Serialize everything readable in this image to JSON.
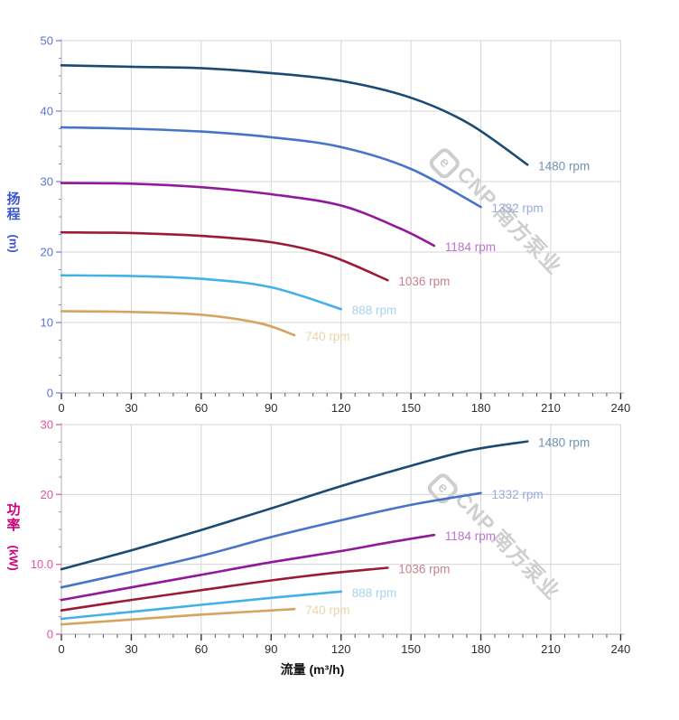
{
  "page": {
    "background": "#ffffff"
  },
  "watermark": {
    "logo_char": "e",
    "brand": "CNP",
    "company": "南方泵业"
  },
  "chart_data": [
    {
      "type": "line",
      "title": "",
      "xlabel": "",
      "ylabel": "扬程 (m)",
      "ylabel_text": "扬程",
      "ylabel_unit": "(m)",
      "xlim": [
        0,
        240
      ],
      "ylim": [
        0,
        50
      ],
      "grid": true,
      "x_ticks": [
        0,
        30,
        60,
        90,
        120,
        150,
        180,
        210,
        240
      ],
      "x_minor_step": 6,
      "y_ticks": [
        0,
        10,
        20,
        30,
        40,
        50
      ],
      "y_tick_labels": [
        "0",
        "10",
        "20",
        "30",
        "40",
        "50"
      ],
      "y_minor_step": 2.5,
      "x_tick_label_color": "#2d2d2d",
      "y_tick_color": "#7b8fe0",
      "y_tick_label_color": "#5b74dd",
      "y_title_color": "#3c55cf",
      "grid_color": "#d5d5d5",
      "axis_color": "#bdbdbd",
      "series": [
        {
          "name": "1480 rpm",
          "color": "#1b4a74",
          "label_color": "#6e93b4",
          "points": [
            [
              0,
              46.5
            ],
            [
              30,
              46.3
            ],
            [
              60,
              46.1
            ],
            [
              90,
              45.4
            ],
            [
              120,
              44.3
            ],
            [
              150,
              41.9
            ],
            [
              175,
              38.2
            ],
            [
              200,
              32.4
            ]
          ]
        },
        {
          "name": "1332 rpm",
          "color": "#4674c8",
          "label_color": "#97abde",
          "points": [
            [
              0,
              37.7
            ],
            [
              30,
              37.5
            ],
            [
              60,
              37.1
            ],
            [
              90,
              36.3
            ],
            [
              120,
              34.9
            ],
            [
              150,
              31.8
            ],
            [
              180,
              26.4
            ]
          ]
        },
        {
          "name": "1184 rpm",
          "color": "#92189c",
          "label_color": "#bf72cf",
          "points": [
            [
              0,
              29.8
            ],
            [
              30,
              29.7
            ],
            [
              60,
              29.2
            ],
            [
              90,
              28.2
            ],
            [
              120,
              26.6
            ],
            [
              145,
              23.4
            ],
            [
              160,
              20.9
            ]
          ]
        },
        {
          "name": "1036 rpm",
          "color": "#9c1a38",
          "label_color": "#c9808f",
          "points": [
            [
              0,
              22.8
            ],
            [
              30,
              22.7
            ],
            [
              60,
              22.3
            ],
            [
              90,
              21.4
            ],
            [
              115,
              19.5
            ],
            [
              140,
              16.0
            ]
          ]
        },
        {
          "name": "888 rpm",
          "color": "#41b2e8",
          "label_color": "#a6d4f0",
          "points": [
            [
              0,
              16.7
            ],
            [
              30,
              16.6
            ],
            [
              60,
              16.2
            ],
            [
              90,
              15.0
            ],
            [
              120,
              11.9
            ]
          ]
        },
        {
          "name": "740 rpm",
          "color": "#d7a360",
          "label_color": "#ecd3a7",
          "points": [
            [
              0,
              11.6
            ],
            [
              30,
              11.5
            ],
            [
              60,
              11.1
            ],
            [
              85,
              9.9
            ],
            [
              100,
              8.2
            ]
          ]
        }
      ]
    },
    {
      "type": "line",
      "title": "",
      "xlabel": "流量 (m³/h)",
      "ylabel": "功率 (kW)",
      "ylabel_text": "功率",
      "ylabel_unit": "(kW)",
      "xlim": [
        0,
        240
      ],
      "ylim": [
        0,
        30
      ],
      "grid": true,
      "x_ticks": [
        0,
        30,
        60,
        90,
        120,
        150,
        180,
        210,
        240
      ],
      "x_minor_step": 6,
      "y_ticks": [
        0,
        10,
        20,
        30
      ],
      "y_tick_labels": [
        "0",
        "10.0",
        "20",
        "30"
      ],
      "y_minor_step": 2.5,
      "x_tick_label_color": "#2d2d2d",
      "y_tick_color": "#e668a8",
      "y_tick_label_color": "#e8519e",
      "y_title_color": "#ce0077",
      "grid_color": "#d5d5d5",
      "axis_color": "#bdbdbd",
      "series": [
        {
          "name": "1480 rpm",
          "color": "#1b4a74",
          "label_color": "#6e93b4",
          "points": [
            [
              0,
              9.3
            ],
            [
              30,
              12.0
            ],
            [
              60,
              14.9
            ],
            [
              90,
              18.0
            ],
            [
              120,
              21.2
            ],
            [
              150,
              24.1
            ],
            [
              175,
              26.3
            ],
            [
              200,
              27.6
            ]
          ]
        },
        {
          "name": "1332 rpm",
          "color": "#4674c8",
          "label_color": "#97abde",
          "points": [
            [
              0,
              6.7
            ],
            [
              30,
              8.9
            ],
            [
              60,
              11.2
            ],
            [
              90,
              13.9
            ],
            [
              120,
              16.3
            ],
            [
              150,
              18.5
            ],
            [
              180,
              20.2
            ]
          ]
        },
        {
          "name": "1184 rpm",
          "color": "#92189c",
          "label_color": "#bf72cf",
          "points": [
            [
              0,
              4.9
            ],
            [
              30,
              6.7
            ],
            [
              60,
              8.5
            ],
            [
              90,
              10.3
            ],
            [
              120,
              11.9
            ],
            [
              140,
              13.1
            ],
            [
              160,
              14.2
            ]
          ]
        },
        {
          "name": "1036 rpm",
          "color": "#9c1a38",
          "label_color": "#c9808f",
          "points": [
            [
              0,
              3.4
            ],
            [
              30,
              4.9
            ],
            [
              60,
              6.3
            ],
            [
              90,
              7.7
            ],
            [
              115,
              8.7
            ],
            [
              140,
              9.5
            ]
          ]
        },
        {
          "name": "888 rpm",
          "color": "#41b2e8",
          "label_color": "#a6d4f0",
          "points": [
            [
              0,
              2.2
            ],
            [
              30,
              3.2
            ],
            [
              60,
              4.2
            ],
            [
              90,
              5.2
            ],
            [
              120,
              6.1
            ]
          ]
        },
        {
          "name": "740 rpm",
          "color": "#d7a360",
          "label_color": "#ecd3a7",
          "points": [
            [
              0,
              1.4
            ],
            [
              30,
              2.1
            ],
            [
              60,
              2.8
            ],
            [
              85,
              3.3
            ],
            [
              100,
              3.6
            ]
          ]
        }
      ]
    }
  ]
}
